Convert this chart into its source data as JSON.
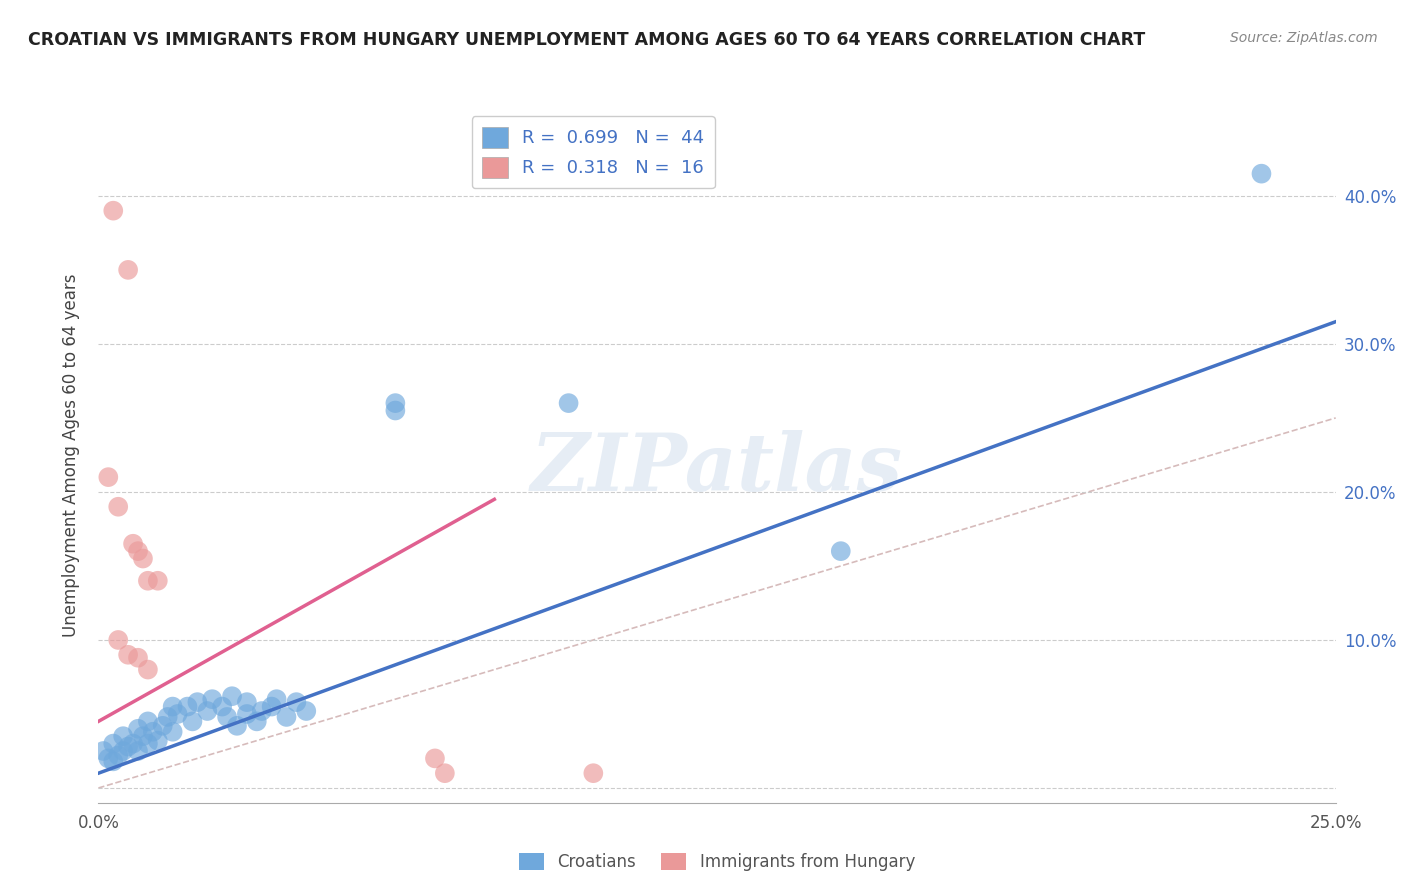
{
  "title": "CROATIAN VS IMMIGRANTS FROM HUNGARY UNEMPLOYMENT AMONG AGES 60 TO 64 YEARS CORRELATION CHART",
  "source": "Source: ZipAtlas.com",
  "ylabel": "Unemployment Among Ages 60 to 64 years",
  "xlim": [
    0.0,
    0.25
  ],
  "ylim": [
    -0.01,
    0.46
  ],
  "xticks": [
    0.0,
    0.05,
    0.1,
    0.15,
    0.2,
    0.25
  ],
  "xtick_labels": [
    "0.0%",
    "",
    "",
    "",
    "",
    "25.0%"
  ],
  "ytick_positions": [
    0.0,
    0.1,
    0.2,
    0.3,
    0.4
  ],
  "ytick_right_labels": [
    "",
    "10.0%",
    "20.0%",
    "30.0%",
    "40.0%"
  ],
  "watermark": "ZIPatlas",
  "color_blue": "#6fa8dc",
  "color_pink": "#ea9999",
  "color_line_blue": "#4472c4",
  "color_line_pink": "#e06090",
  "color_diag": "#ccaaaa",
  "blue_scatter": [
    [
      0.001,
      0.025
    ],
    [
      0.002,
      0.02
    ],
    [
      0.003,
      0.018
    ],
    [
      0.003,
      0.03
    ],
    [
      0.004,
      0.022
    ],
    [
      0.005,
      0.025
    ],
    [
      0.005,
      0.035
    ],
    [
      0.006,
      0.028
    ],
    [
      0.007,
      0.03
    ],
    [
      0.008,
      0.025
    ],
    [
      0.008,
      0.04
    ],
    [
      0.009,
      0.035
    ],
    [
      0.01,
      0.03
    ],
    [
      0.01,
      0.045
    ],
    [
      0.011,
      0.038
    ],
    [
      0.012,
      0.032
    ],
    [
      0.013,
      0.042
    ],
    [
      0.014,
      0.048
    ],
    [
      0.015,
      0.038
    ],
    [
      0.015,
      0.055
    ],
    [
      0.016,
      0.05
    ],
    [
      0.018,
      0.055
    ],
    [
      0.019,
      0.045
    ],
    [
      0.02,
      0.058
    ],
    [
      0.022,
      0.052
    ],
    [
      0.023,
      0.06
    ],
    [
      0.025,
      0.055
    ],
    [
      0.026,
      0.048
    ],
    [
      0.027,
      0.062
    ],
    [
      0.028,
      0.042
    ],
    [
      0.03,
      0.05
    ],
    [
      0.03,
      0.058
    ],
    [
      0.032,
      0.045
    ],
    [
      0.033,
      0.052
    ],
    [
      0.035,
      0.055
    ],
    [
      0.036,
      0.06
    ],
    [
      0.038,
      0.048
    ],
    [
      0.04,
      0.058
    ],
    [
      0.042,
      0.052
    ],
    [
      0.06,
      0.26
    ],
    [
      0.06,
      0.255
    ],
    [
      0.095,
      0.26
    ],
    [
      0.15,
      0.16
    ],
    [
      0.235,
      0.415
    ]
  ],
  "pink_scatter": [
    [
      0.003,
      0.39
    ],
    [
      0.006,
      0.35
    ],
    [
      0.002,
      0.21
    ],
    [
      0.004,
      0.19
    ],
    [
      0.007,
      0.165
    ],
    [
      0.008,
      0.16
    ],
    [
      0.009,
      0.155
    ],
    [
      0.01,
      0.14
    ],
    [
      0.012,
      0.14
    ],
    [
      0.004,
      0.1
    ],
    [
      0.006,
      0.09
    ],
    [
      0.008,
      0.088
    ],
    [
      0.01,
      0.08
    ],
    [
      0.068,
      0.02
    ],
    [
      0.1,
      0.01
    ],
    [
      0.07,
      0.01
    ]
  ],
  "blue_line_x": [
    0.0,
    0.25
  ],
  "blue_line_y": [
    0.01,
    0.315
  ],
  "pink_line_x": [
    0.0,
    0.08
  ],
  "pink_line_y": [
    0.045,
    0.195
  ],
  "diag_line_x": [
    0.0,
    0.25
  ],
  "diag_line_y": [
    0.0,
    0.25
  ]
}
